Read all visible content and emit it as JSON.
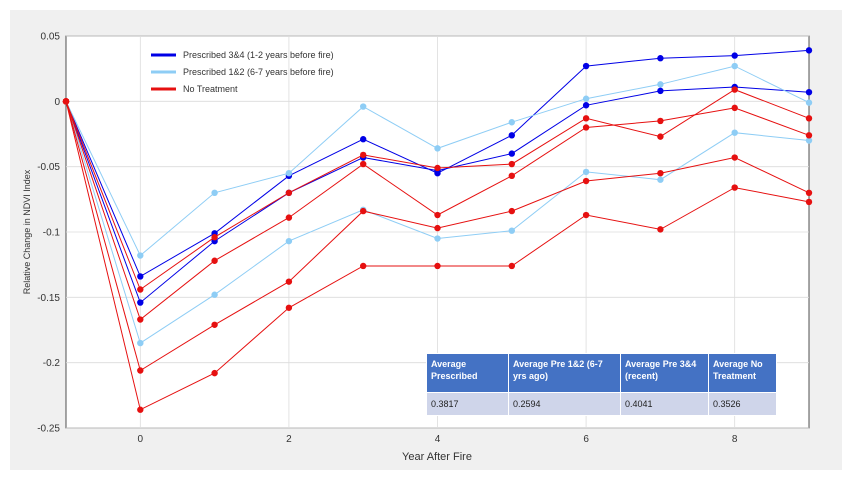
{
  "chart_data": {
    "type": "line",
    "xlabel": "Year After Fire",
    "ylabel": "Relative Change in NDVI Index",
    "xlim": [
      -1,
      9
    ],
    "ylim": [
      -0.25,
      0.05
    ],
    "x_ticks": [
      0,
      2,
      4,
      6,
      8
    ],
    "y_ticks": [
      0.05,
      0,
      -0.05,
      -0.1,
      -0.15,
      -0.2,
      -0.25
    ],
    "grid": true,
    "legend_position": "top-left",
    "x": [
      -1,
      0,
      1,
      2,
      3,
      4,
      5,
      6,
      7,
      8,
      9
    ],
    "legend": [
      {
        "label": "Prescribed 3&4 (1-2 years before fire)",
        "color": "#0000e6"
      },
      {
        "label": "Prescribed 1&2 (6-7 years before fire)",
        "color": "#8ecdf5"
      },
      {
        "label": "No Treatment",
        "color": "#e61010"
      }
    ],
    "series": [
      {
        "group": "Prescribed 3&4 (1-2 years before fire)",
        "color": "#0000e6",
        "values": [
          0,
          -0.134,
          -0.101,
          -0.057,
          -0.029,
          -0.055,
          -0.026,
          0.027,
          0.033,
          0.035,
          0.039
        ]
      },
      {
        "group": "Prescribed 3&4 (1-2 years before fire)",
        "color": "#0000e6",
        "values": [
          0,
          -0.154,
          -0.107,
          -0.07,
          -0.043,
          -0.053,
          -0.04,
          -0.003,
          0.008,
          0.011,
          0.007
        ]
      },
      {
        "group": "Prescribed 1&2 (6-7 years before fire)",
        "color": "#8ecdf5",
        "values": [
          0,
          -0.118,
          -0.07,
          -0.055,
          -0.004,
          -0.036,
          -0.016,
          0.002,
          0.013,
          0.027,
          -0.001
        ]
      },
      {
        "group": "Prescribed 1&2 (6-7 years before fire)",
        "color": "#8ecdf5",
        "values": [
          0,
          -0.185,
          -0.148,
          -0.107,
          -0.083,
          -0.105,
          -0.099,
          -0.054,
          -0.06,
          -0.024,
          -0.03
        ]
      },
      {
        "group": "No Treatment",
        "color": "#e61010",
        "values": [
          0,
          -0.144,
          -0.104,
          -0.07,
          -0.041,
          -0.051,
          -0.048,
          -0.013,
          -0.027,
          0.009,
          -0.013
        ]
      },
      {
        "group": "No Treatment",
        "color": "#e61010",
        "values": [
          0,
          -0.167,
          -0.122,
          -0.089,
          -0.048,
          -0.087,
          -0.057,
          -0.02,
          -0.015,
          -0.005,
          -0.026
        ]
      },
      {
        "group": "No Treatment",
        "color": "#e61010",
        "values": [
          0,
          -0.206,
          -0.171,
          -0.138,
          -0.084,
          -0.097,
          -0.084,
          -0.061,
          -0.055,
          -0.043,
          -0.07
        ]
      },
      {
        "group": "No Treatment",
        "color": "#e61010",
        "values": [
          0,
          -0.236,
          -0.208,
          -0.158,
          -0.126,
          -0.126,
          -0.126,
          -0.087,
          -0.098,
          -0.066,
          -0.077
        ]
      }
    ]
  },
  "summary_table": {
    "headers": [
      "Average Prescribed",
      "Average Pre 1&2 (6-7 yrs ago)",
      "Average Pre 3&4 (recent)",
      "Average No Treatment"
    ],
    "values": [
      "0.3817",
      "0.2594",
      "0.4041",
      "0.3526"
    ]
  }
}
